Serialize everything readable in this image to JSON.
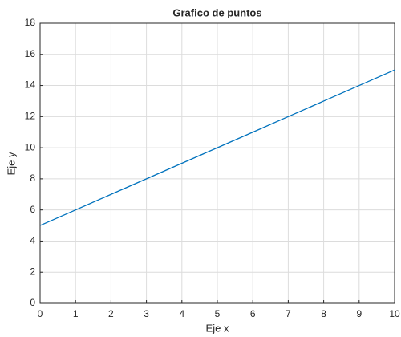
{
  "chart_data": {
    "type": "line",
    "title": "Grafico de puntos",
    "xlabel": "Eje x",
    "ylabel": "Eje y",
    "x": [
      0,
      1,
      2,
      3,
      4,
      5,
      6,
      7,
      8,
      9,
      10
    ],
    "series": [
      {
        "name": "y",
        "color": "#0072bd",
        "values": [
          5,
          6,
          7,
          8,
          9,
          10,
          11,
          12,
          13,
          14,
          15
        ]
      }
    ],
    "xlim": [
      0,
      10
    ],
    "xticks": [
      0,
      1,
      2,
      3,
      4,
      5,
      6,
      7,
      8,
      9,
      10
    ],
    "ylim": [
      0,
      18
    ],
    "yticks": [
      0,
      2,
      4,
      6,
      8,
      10,
      12,
      14,
      16,
      18
    ],
    "grid": true
  }
}
